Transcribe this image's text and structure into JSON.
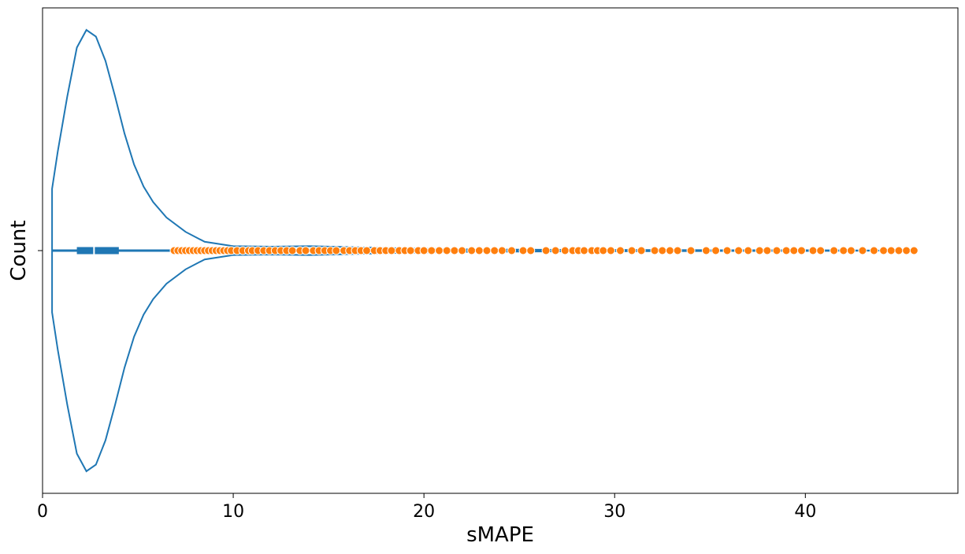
{
  "chart_data": {
    "type": "violin",
    "xlabel": "sMAPE",
    "ylabel": "Count",
    "xlim": [
      0,
      48
    ],
    "x_ticks": [
      0,
      10,
      20,
      30,
      40
    ],
    "x_tick_labels": [
      "0",
      "10",
      "20",
      "30",
      "40"
    ],
    "y_ticks": [
      ""
    ],
    "violin": {
      "color": "#1f77b4",
      "density_profile": [
        {
          "x": 0.5,
          "w": 0.28
        },
        {
          "x": 0.8,
          "w": 0.45
        },
        {
          "x": 1.3,
          "w": 0.7
        },
        {
          "x": 1.8,
          "w": 0.92
        },
        {
          "x": 2.3,
          "w": 1.0
        },
        {
          "x": 2.8,
          "w": 0.97
        },
        {
          "x": 3.3,
          "w": 0.86
        },
        {
          "x": 3.8,
          "w": 0.7
        },
        {
          "x": 4.3,
          "w": 0.53
        },
        {
          "x": 4.8,
          "w": 0.39
        },
        {
          "x": 5.3,
          "w": 0.29
        },
        {
          "x": 5.8,
          "w": 0.22
        },
        {
          "x": 6.5,
          "w": 0.15
        },
        {
          "x": 7.5,
          "w": 0.085
        },
        {
          "x": 8.5,
          "w": 0.04
        },
        {
          "x": 10,
          "w": 0.02
        },
        {
          "x": 12,
          "w": 0.018
        },
        {
          "x": 14,
          "w": 0.02
        },
        {
          "x": 16,
          "w": 0.016
        },
        {
          "x": 19,
          "w": 0.01
        },
        {
          "x": 22,
          "w": 0.006
        },
        {
          "x": 26,
          "w": 0.004
        },
        {
          "x": 30,
          "w": 0.003
        },
        {
          "x": 35,
          "w": 0.002
        },
        {
          "x": 40,
          "w": 0.002
        },
        {
          "x": 45.5,
          "w": 0.0
        }
      ],
      "whisker_low": 0.5,
      "whisker_high": 6.8,
      "q1": 1.8,
      "median": 2.7,
      "q3": 4.0
    },
    "outliers": {
      "color": "#ff7f0e",
      "values": [
        6.9,
        7.1,
        7.3,
        7.5,
        7.7,
        7.9,
        8.1,
        8.3,
        8.5,
        8.7,
        8.9,
        9.1,
        9.3,
        9.5,
        9.7,
        9.9,
        10.2,
        10.5,
        10.8,
        11.0,
        11.3,
        11.6,
        11.9,
        12.2,
        12.5,
        12.8,
        13.1,
        13.5,
        13.8,
        14.2,
        14.5,
        14.8,
        15.1,
        15.4,
        15.8,
        16.1,
        16.4,
        16.7,
        17.0,
        17.4,
        17.7,
        18.0,
        18.3,
        18.7,
        19.0,
        19.3,
        19.7,
        20.0,
        20.4,
        20.8,
        21.2,
        21.6,
        22.0,
        22.5,
        22.9,
        23.3,
        23.7,
        24.1,
        24.6,
        25.2,
        25.6,
        26.4,
        26.9,
        27.4,
        27.8,
        28.1,
        28.4,
        28.8,
        29.1,
        29.4,
        29.8,
        30.3,
        30.9,
        31.4,
        32.1,
        32.5,
        32.9,
        33.3,
        34.0,
        34.8,
        35.3,
        35.9,
        36.5,
        37.0,
        37.6,
        38.0,
        38.5,
        39.0,
        39.4,
        39.8,
        40.4,
        40.8,
        41.5,
        42.0,
        42.4,
        43.0,
        43.6,
        44.1,
        44.5,
        44.9,
        45.3,
        45.7
      ]
    }
  }
}
